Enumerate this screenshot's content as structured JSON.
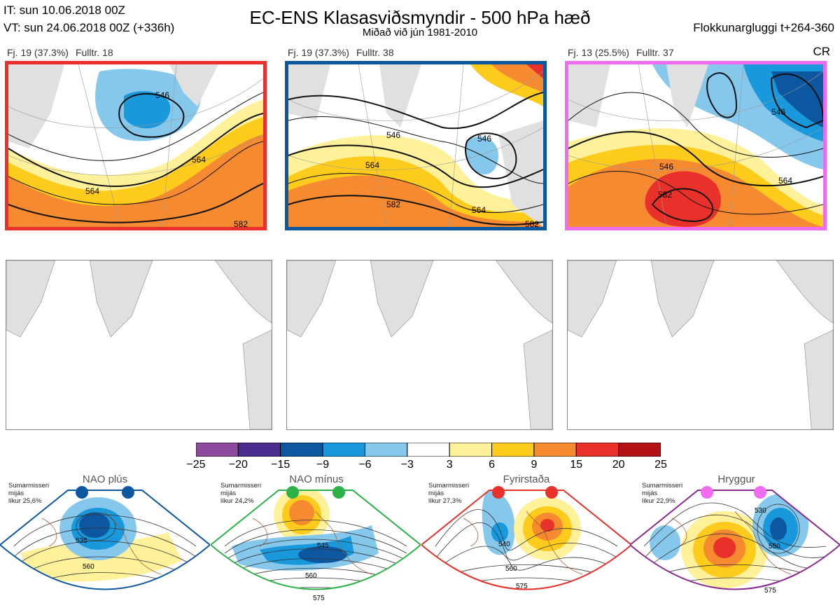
{
  "header": {
    "it_line": "IT: sun 10.06.2018 00Z",
    "vt_line": "VT: sun 24.06.2018 00Z  (+336h)",
    "title": "EC-ENS Klasasviðsmyndir - 500 hPa hæð",
    "subtitle": "Miðað við jún 1981-2010",
    "window": "Flokkunargluggi t+264-360",
    "cr": "CR"
  },
  "panels": [
    {
      "count": "Fj. 19 (37.3%)",
      "representative": "Fulltr. 18",
      "border_color": "#e8312b",
      "contours": [
        "546",
        "564",
        "564",
        "582"
      ]
    },
    {
      "count": "Fj. 19 (37.3%)",
      "representative": "Fulltr. 38",
      "border_color": "#0d57a0",
      "contours": [
        "546",
        "564",
        "564",
        "582",
        "546",
        "582"
      ]
    },
    {
      "count": "Fj. 13 (25.5%)",
      "representative": "Fulltr. 37",
      "border_color": "#ef6bef",
      "contours": [
        "546",
        "564",
        "582",
        "546"
      ]
    }
  ],
  "colorbar": {
    "colors": [
      "#8e4a9e",
      "#4b2d8f",
      "#0d57a0",
      "#1a98dc",
      "#86c7ec",
      "#ffffff",
      "#fff19a",
      "#fdcb1c",
      "#f58a30",
      "#e8312b",
      "#b31116"
    ],
    "ticks": [
      "−25",
      "−20",
      "−15",
      "−9",
      "−6",
      "−3",
      "3",
      "6",
      "9",
      "15",
      "20",
      "25"
    ]
  },
  "regimes": [
    {
      "name": "NAO plús",
      "season": "Sumarmisseri",
      "season2": "mijás",
      "likelihood": "líkur 25,6%",
      "dot_color": "#0d57a0",
      "border_color": "#0d57a0",
      "contours": [
        "535",
        "560"
      ]
    },
    {
      "name": "NAO mínus",
      "season": "Sumarmisseri",
      "season2": "mijás",
      "likelihood": "líkur 24,2%",
      "dot_color": "#2db24a",
      "border_color": "#2db24a",
      "contours": [
        "545",
        "560",
        "575"
      ]
    },
    {
      "name": "Fyrirstaða",
      "season": "Sumarmisseri",
      "season2": "mijás",
      "likelihood": "líkur 27,3%",
      "dot_color": "#e8312b",
      "border_color": "#e8312b",
      "contours": [
        "540",
        "560",
        "575"
      ]
    },
    {
      "name": "Hryggur",
      "season": "Sumarmisseri",
      "season2": "mijás",
      "likelihood": "líkur 22,9%",
      "dot_color": "#ef6bef",
      "border_color": "#8a2b8f",
      "contours": [
        "530",
        "550",
        "575"
      ]
    }
  ]
}
